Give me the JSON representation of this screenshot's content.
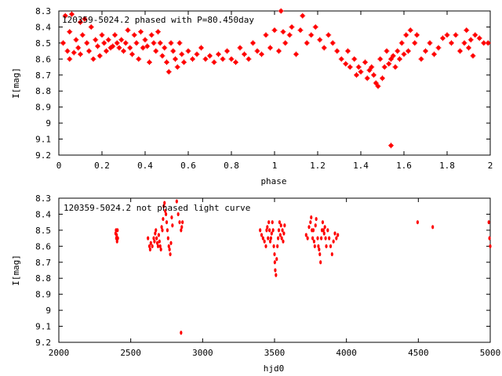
{
  "chart_data": [
    {
      "type": "scatter",
      "title": "120359-5024.2 phased with P=80.450day",
      "xlabel": "phase",
      "ylabel": "I[mag]",
      "xlim": [
        0,
        2
      ],
      "ylim": [
        9.2,
        8.3
      ],
      "y_inverted": true,
      "grid": false,
      "marker_color": "#ff0000",
      "xticks": [
        "0",
        "0.2",
        "0.4",
        "0.6",
        "0.8",
        "1",
        "1.2",
        "1.4",
        "1.6",
        "1.8",
        "2"
      ],
      "yticks": [
        "8.3",
        "8.4",
        "8.5",
        "8.6",
        "8.7",
        "8.8",
        "8.9",
        "9",
        "9.1",
        "9.2"
      ],
      "series": [
        {
          "points": [
            [
              0.02,
              8.5
            ],
            [
              0.03,
              8.33
            ],
            [
              0.04,
              8.55
            ],
            [
              0.05,
              8.43
            ],
            [
              0.05,
              8.6
            ],
            [
              0.06,
              8.32
            ],
            [
              0.07,
              8.56
            ],
            [
              0.08,
              8.48
            ],
            [
              0.09,
              8.53
            ],
            [
              0.1,
              8.37
            ],
            [
              0.1,
              8.57
            ],
            [
              0.11,
              8.45
            ],
            [
              0.12,
              8.35
            ],
            [
              0.13,
              8.5
            ],
            [
              0.14,
              8.55
            ],
            [
              0.15,
              8.4
            ],
            [
              0.16,
              8.6
            ],
            [
              0.17,
              8.48
            ],
            [
              0.18,
              8.52
            ],
            [
              0.19,
              8.58
            ],
            [
              0.2,
              8.45
            ],
            [
              0.21,
              8.5
            ],
            [
              0.22,
              8.55
            ],
            [
              0.23,
              8.48
            ],
            [
              0.24,
              8.53
            ],
            [
              0.25,
              8.52
            ],
            [
              0.26,
              8.45
            ],
            [
              0.27,
              8.5
            ],
            [
              0.28,
              8.53
            ],
            [
              0.29,
              8.48
            ],
            [
              0.3,
              8.55
            ],
            [
              0.31,
              8.5
            ],
            [
              0.32,
              8.42
            ],
            [
              0.33,
              8.53
            ],
            [
              0.34,
              8.57
            ],
            [
              0.35,
              8.45
            ],
            [
              0.36,
              8.5
            ],
            [
              0.37,
              8.6
            ],
            [
              0.38,
              8.43
            ],
            [
              0.39,
              8.53
            ],
            [
              0.4,
              8.48
            ],
            [
              0.41,
              8.52
            ],
            [
              0.42,
              8.62
            ],
            [
              0.43,
              8.45
            ],
            [
              0.44,
              8.5
            ],
            [
              0.45,
              8.55
            ],
            [
              0.46,
              8.43
            ],
            [
              0.47,
              8.5
            ],
            [
              0.48,
              8.58
            ],
            [
              0.49,
              8.53
            ],
            [
              0.5,
              8.62
            ],
            [
              0.51,
              8.68
            ],
            [
              0.52,
              8.5
            ],
            [
              0.53,
              8.55
            ],
            [
              0.54,
              8.6
            ],
            [
              0.55,
              8.65
            ],
            [
              0.56,
              8.5
            ],
            [
              0.57,
              8.57
            ],
            [
              0.58,
              8.62
            ],
            [
              0.6,
              8.55
            ],
            [
              0.62,
              8.6
            ],
            [
              0.64,
              8.57
            ],
            [
              0.66,
              8.53
            ],
            [
              0.68,
              8.6
            ],
            [
              0.7,
              8.58
            ],
            [
              0.72,
              8.62
            ],
            [
              0.74,
              8.57
            ],
            [
              0.76,
              8.6
            ],
            [
              0.78,
              8.55
            ],
            [
              0.8,
              8.6
            ],
            [
              0.82,
              8.62
            ],
            [
              0.84,
              8.53
            ],
            [
              0.86,
              8.57
            ],
            [
              0.88,
              8.6
            ],
            [
              0.9,
              8.5
            ],
            [
              0.92,
              8.55
            ],
            [
              0.94,
              8.57
            ],
            [
              0.96,
              8.45
            ],
            [
              0.98,
              8.53
            ],
            [
              1.0,
              8.42
            ],
            [
              1.02,
              8.55
            ],
            [
              1.03,
              8.3
            ],
            [
              1.04,
              8.43
            ],
            [
              1.05,
              8.5
            ],
            [
              1.07,
              8.45
            ],
            [
              1.08,
              8.4
            ],
            [
              1.1,
              8.57
            ],
            [
              1.12,
              8.42
            ],
            [
              1.13,
              8.33
            ],
            [
              1.15,
              8.5
            ],
            [
              1.17,
              8.45
            ],
            [
              1.19,
              8.4
            ],
            [
              1.21,
              8.48
            ],
            [
              1.23,
              8.53
            ],
            [
              1.25,
              8.45
            ],
            [
              1.27,
              8.5
            ],
            [
              1.29,
              8.55
            ],
            [
              1.31,
              8.6
            ],
            [
              1.33,
              8.63
            ],
            [
              1.34,
              8.55
            ],
            [
              1.35,
              8.65
            ],
            [
              1.37,
              8.6
            ],
            [
              1.38,
              8.7
            ],
            [
              1.39,
              8.65
            ],
            [
              1.4,
              8.68
            ],
            [
              1.42,
              8.62
            ],
            [
              1.43,
              8.72
            ],
            [
              1.44,
              8.67
            ],
            [
              1.45,
              8.65
            ],
            [
              1.46,
              8.7
            ],
            [
              1.47,
              8.75
            ],
            [
              1.48,
              8.77
            ],
            [
              1.49,
              8.6
            ],
            [
              1.5,
              8.72
            ],
            [
              1.51,
              8.65
            ],
            [
              1.52,
              8.55
            ],
            [
              1.53,
              8.63
            ],
            [
              1.54,
              8.6
            ],
            [
              1.54,
              9.14
            ],
            [
              1.55,
              8.58
            ],
            [
              1.56,
              8.65
            ],
            [
              1.57,
              8.55
            ],
            [
              1.58,
              8.6
            ],
            [
              1.59,
              8.5
            ],
            [
              1.6,
              8.57
            ],
            [
              1.61,
              8.45
            ],
            [
              1.62,
              8.55
            ],
            [
              1.63,
              8.42
            ],
            [
              1.65,
              8.5
            ],
            [
              1.66,
              8.45
            ],
            [
              1.68,
              8.6
            ],
            [
              1.7,
              8.55
            ],
            [
              1.72,
              8.5
            ],
            [
              1.74,
              8.57
            ],
            [
              1.76,
              8.53
            ],
            [
              1.78,
              8.47
            ],
            [
              1.8,
              8.45
            ],
            [
              1.82,
              8.5
            ],
            [
              1.84,
              8.45
            ],
            [
              1.86,
              8.55
            ],
            [
              1.88,
              8.5
            ],
            [
              1.89,
              8.42
            ],
            [
              1.9,
              8.53
            ],
            [
              1.91,
              8.48
            ],
            [
              1.92,
              8.58
            ],
            [
              1.93,
              8.45
            ],
            [
              1.95,
              8.47
            ],
            [
              1.97,
              8.5
            ],
            [
              1.99,
              8.5
            ]
          ]
        }
      ]
    },
    {
      "type": "scatter",
      "title": "120359-5024.2 not phased light curve",
      "xlabel": "hjd0",
      "ylabel": "I[mag]",
      "xlim": [
        2000,
        5000
      ],
      "ylim": [
        9.2,
        8.3
      ],
      "y_inverted": true,
      "grid": false,
      "marker_color": "#ff0000",
      "xticks": [
        "2000",
        "2500",
        "3000",
        "3500",
        "4000",
        "4500",
        "5000"
      ],
      "yticks": [
        "8.3",
        "8.4",
        "8.5",
        "8.6",
        "8.7",
        "8.8",
        "8.9",
        "9",
        "9.1",
        "9.2"
      ],
      "series": [
        {
          "points": [
            [
              2395,
              8.52
            ],
            [
              2398,
              8.5
            ],
            [
              2400,
              8.55
            ],
            [
              2402,
              8.53
            ],
            [
              2405,
              8.57
            ],
            [
              2408,
              8.5
            ],
            [
              2410,
              8.55
            ],
            [
              2620,
              8.55
            ],
            [
              2630,
              8.6
            ],
            [
              2635,
              8.62
            ],
            [
              2640,
              8.58
            ],
            [
              2650,
              8.6
            ],
            [
              2660,
              8.55
            ],
            [
              2665,
              8.57
            ],
            [
              2670,
              8.52
            ],
            [
              2675,
              8.5
            ],
            [
              2680,
              8.55
            ],
            [
              2685,
              8.58
            ],
            [
              2690,
              8.6
            ],
            [
              2695,
              8.53
            ],
            [
              2700,
              8.57
            ],
            [
              2705,
              8.6
            ],
            [
              2710,
              8.62
            ],
            [
              2715,
              8.48
            ],
            [
              2720,
              8.5
            ],
            [
              2725,
              8.43
            ],
            [
              2730,
              8.35
            ],
            [
              2735,
              8.33
            ],
            [
              2740,
              8.38
            ],
            [
              2745,
              8.4
            ],
            [
              2750,
              8.45
            ],
            [
              2755,
              8.5
            ],
            [
              2760,
              8.55
            ],
            [
              2765,
              8.6
            ],
            [
              2770,
              8.62
            ],
            [
              2775,
              8.65
            ],
            [
              2780,
              8.58
            ],
            [
              2785,
              8.42
            ],
            [
              2790,
              8.47
            ],
            [
              2820,
              8.32
            ],
            [
              2830,
              8.4
            ],
            [
              2840,
              8.45
            ],
            [
              2850,
              8.5
            ],
            [
              2855,
              8.48
            ],
            [
              2860,
              8.45
            ],
            [
              2850,
              9.14
            ],
            [
              3400,
              8.5
            ],
            [
              3410,
              8.53
            ],
            [
              3420,
              8.55
            ],
            [
              3430,
              8.57
            ],
            [
              3440,
              8.6
            ],
            [
              3445,
              8.5
            ],
            [
              3450,
              8.48
            ],
            [
              3455,
              8.55
            ],
            [
              3460,
              8.45
            ],
            [
              3465,
              8.5
            ],
            [
              3470,
              8.57
            ],
            [
              3475,
              8.55
            ],
            [
              3480,
              8.52
            ],
            [
              3485,
              8.45
            ],
            [
              3490,
              8.5
            ],
            [
              3495,
              8.6
            ],
            [
              3500,
              8.65
            ],
            [
              3502,
              8.7
            ],
            [
              3505,
              8.75
            ],
            [
              3510,
              8.78
            ],
            [
              3515,
              8.68
            ],
            [
              3520,
              8.6
            ],
            [
              3525,
              8.55
            ],
            [
              3530,
              8.5
            ],
            [
              3535,
              8.45
            ],
            [
              3540,
              8.53
            ],
            [
              3545,
              8.47
            ],
            [
              3550,
              8.55
            ],
            [
              3555,
              8.5
            ],
            [
              3560,
              8.57
            ],
            [
              3565,
              8.52
            ],
            [
              3570,
              8.47
            ],
            [
              3720,
              8.53
            ],
            [
              3730,
              8.55
            ],
            [
              3740,
              8.48
            ],
            [
              3750,
              8.45
            ],
            [
              3755,
              8.42
            ],
            [
              3760,
              8.5
            ],
            [
              3765,
              8.55
            ],
            [
              3770,
              8.5
            ],
            [
              3775,
              8.57
            ],
            [
              3780,
              8.6
            ],
            [
              3785,
              8.47
            ],
            [
              3790,
              8.43
            ],
            [
              3800,
              8.55
            ],
            [
              3805,
              8.6
            ],
            [
              3810,
              8.62
            ],
            [
              3815,
              8.65
            ],
            [
              3820,
              8.7
            ],
            [
              3825,
              8.55
            ],
            [
              3830,
              8.5
            ],
            [
              3835,
              8.45
            ],
            [
              3840,
              8.5
            ],
            [
              3845,
              8.52
            ],
            [
              3850,
              8.48
            ],
            [
              3855,
              8.55
            ],
            [
              3860,
              8.6
            ],
            [
              3870,
              8.5
            ],
            [
              3880,
              8.55
            ],
            [
              3890,
              8.6
            ],
            [
              3900,
              8.65
            ],
            [
              3910,
              8.57
            ],
            [
              3920,
              8.52
            ],
            [
              3930,
              8.55
            ],
            [
              3940,
              8.53
            ],
            [
              4495,
              8.45
            ],
            [
              4600,
              8.48
            ],
            [
              4990,
              8.45
            ],
            [
              4995,
              8.55
            ],
            [
              5000,
              8.6
            ]
          ]
        }
      ]
    }
  ]
}
